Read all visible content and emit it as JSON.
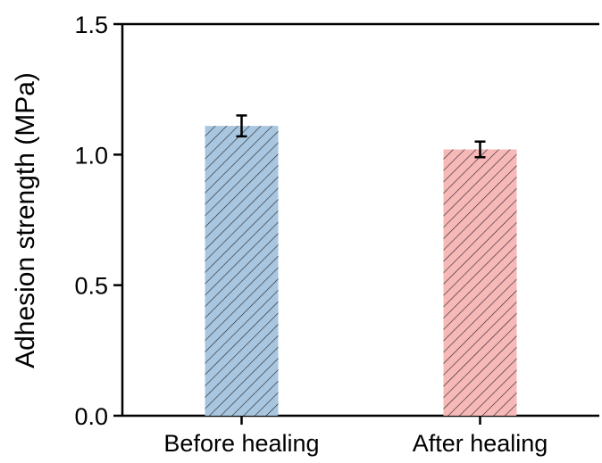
{
  "chart_data": {
    "type": "bar",
    "categories": [
      "Before healing",
      "After healing"
    ],
    "values": [
      1.11,
      1.02
    ],
    "errors": [
      0.04,
      0.03
    ],
    "ylabel": "Adhesion strength (MPa)",
    "xlabel": "",
    "ylim": [
      0,
      1.5
    ],
    "yticks": [
      0.0,
      0.5,
      1.0,
      1.5
    ],
    "ytick_labels": [
      "0.0",
      "0.5",
      "1.0",
      "1.5"
    ],
    "bar_colors": [
      "#a9c6e0",
      "#f7b8b8"
    ],
    "bar_pattern": "diagonal-hatch",
    "grid": false,
    "legend": "none"
  }
}
